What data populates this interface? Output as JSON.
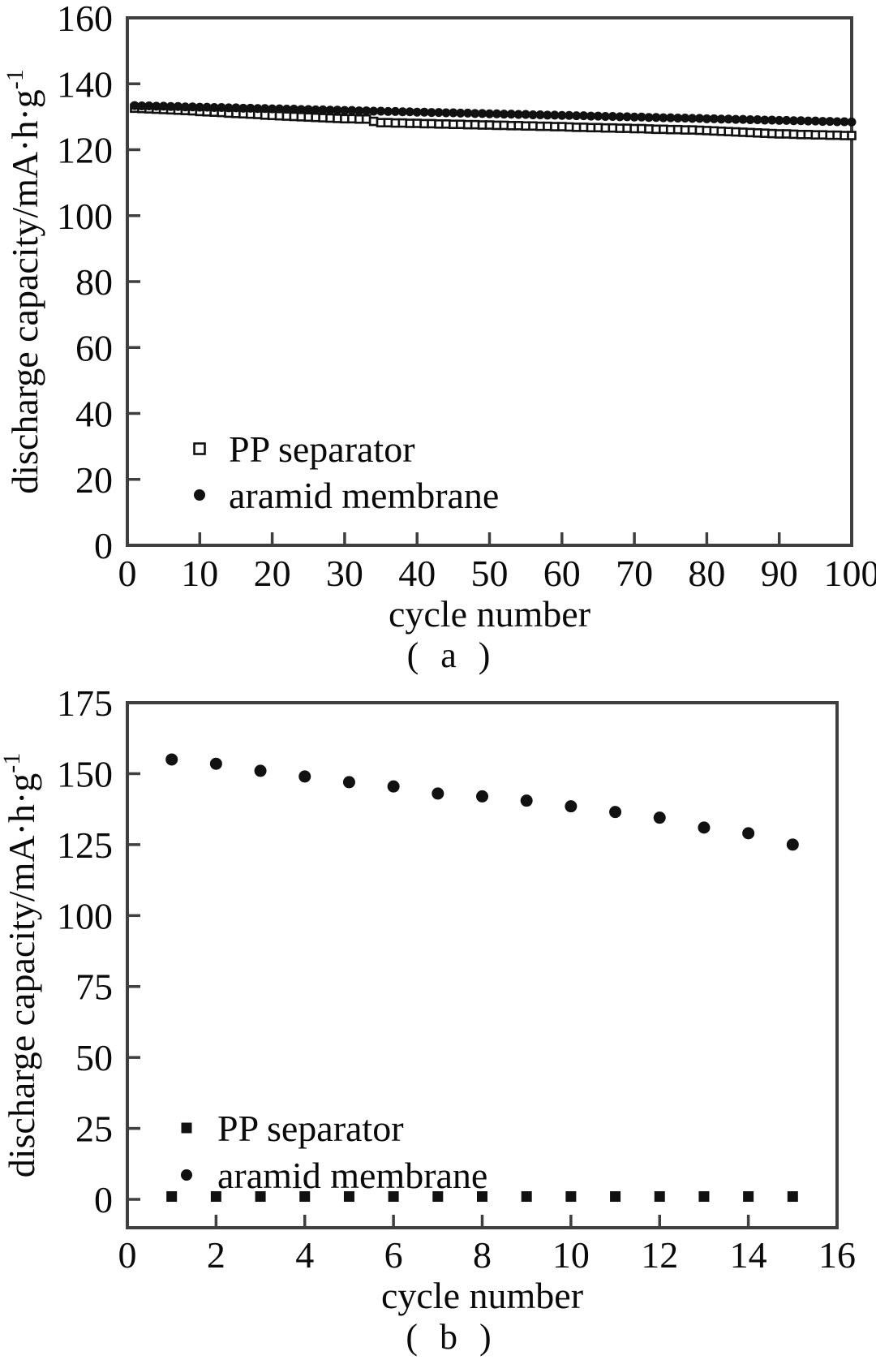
{
  "figure": {
    "background": "#ffffff",
    "text_color": "#0a0a0a",
    "axis_color": "#3f3f3f",
    "marker_color": "#111111"
  },
  "chart_data": [
    {
      "id": "a",
      "type": "scatter",
      "caption": "( a )",
      "xlabel": "cycle number",
      "ylabel_main": "discharge capacity/mA·h·g",
      "ylabel_exponent": "-1",
      "xlim": [
        0,
        100
      ],
      "ylim": [
        0,
        160
      ],
      "xticks": [
        0,
        10,
        20,
        30,
        40,
        50,
        60,
        70,
        80,
        90,
        100
      ],
      "yticks": [
        0,
        20,
        40,
        60,
        80,
        100,
        120,
        140,
        160
      ],
      "grid": false,
      "legend_position": "lower-left-inside",
      "x_start": 1,
      "x_step": 1,
      "series": [
        {
          "name": "PP separator",
          "marker": "open-square",
          "color": "#111111",
          "values": [
            132.6,
            132.5,
            132.4,
            132.3,
            132.2,
            132.1,
            132.0,
            131.9,
            131.8,
            131.6,
            131.5,
            131.4,
            131.3,
            131.1,
            131.0,
            130.9,
            130.8,
            130.7,
            130.5,
            130.4,
            130.3,
            130.2,
            130.1,
            130.0,
            129.9,
            129.8,
            129.7,
            129.6,
            129.5,
            129.4,
            129.4,
            129.3,
            129.3,
            128.6,
            128.2,
            128.2,
            128.1,
            128.1,
            128.0,
            128.0,
            127.9,
            127.9,
            127.8,
            127.8,
            127.7,
            127.7,
            127.6,
            127.6,
            127.5,
            127.5,
            127.4,
            127.4,
            127.3,
            127.3,
            127.2,
            127.2,
            127.1,
            127.1,
            127.0,
            127.0,
            126.9,
            126.8,
            126.8,
            126.7,
            126.7,
            126.6,
            126.6,
            126.5,
            126.5,
            126.4,
            126.4,
            126.3,
            126.2,
            126.2,
            126.1,
            126.1,
            126.0,
            126.0,
            125.9,
            125.8,
            125.7,
            125.6,
            125.5,
            125.4,
            125.3,
            125.2,
            125.1,
            125.0,
            124.9,
            124.8,
            124.8,
            124.7,
            124.6,
            124.6,
            124.5,
            124.5,
            124.4,
            124.4,
            124.3,
            124.3
          ]
        },
        {
          "name": "aramid membrane",
          "marker": "filled-circle",
          "color": "#111111",
          "values": [
            133.4,
            133.3,
            133.3,
            133.2,
            133.2,
            133.1,
            133.1,
            133.0,
            133.0,
            132.9,
            132.9,
            132.8,
            132.8,
            132.7,
            132.7,
            132.6,
            132.6,
            132.5,
            132.5,
            132.4,
            132.4,
            132.3,
            132.3,
            132.2,
            132.2,
            132.1,
            132.1,
            132.0,
            132.0,
            131.9,
            131.9,
            131.8,
            131.8,
            131.7,
            131.7,
            131.6,
            131.6,
            131.5,
            131.5,
            131.4,
            131.4,
            131.3,
            131.3,
            131.2,
            131.2,
            131.1,
            131.1,
            131.0,
            131.0,
            130.9,
            130.9,
            130.8,
            130.8,
            130.7,
            130.7,
            130.6,
            130.6,
            130.5,
            130.5,
            130.4,
            130.4,
            130.3,
            130.3,
            130.2,
            130.2,
            130.1,
            130.1,
            130.0,
            130.0,
            129.9,
            129.9,
            129.8,
            129.8,
            129.7,
            129.7,
            129.6,
            129.6,
            129.5,
            129.5,
            129.4,
            129.4,
            129.3,
            129.3,
            129.2,
            129.2,
            129.1,
            129.1,
            129.0,
            129.0,
            128.9,
            128.9,
            128.8,
            128.8,
            128.7,
            128.7,
            128.6,
            128.6,
            128.5,
            128.5,
            128.4
          ]
        }
      ]
    },
    {
      "id": "b",
      "type": "scatter",
      "caption": "( b )",
      "xlabel": "cycle number",
      "ylabel_main": "discharge capacity/mA·h·g",
      "ylabel_exponent": "-1",
      "xlim": [
        0,
        16
      ],
      "ylim": [
        -10,
        175
      ],
      "xticks": [
        0,
        2,
        4,
        6,
        8,
        10,
        12,
        14,
        16
      ],
      "yticks": [
        0,
        25,
        50,
        75,
        100,
        125,
        150,
        175
      ],
      "grid": false,
      "legend_position": "lower-left-inside",
      "x_start": 1,
      "x_step": 1,
      "series": [
        {
          "name": "PP separator",
          "marker": "filled-square",
          "color": "#111111",
          "values": [
            1,
            1,
            1,
            1,
            1,
            1,
            1,
            1,
            1,
            1,
            1,
            1,
            1,
            1,
            1
          ]
        },
        {
          "name": "aramid membrane",
          "marker": "filled-circle",
          "color": "#111111",
          "values": [
            155,
            153.5,
            151,
            149,
            147,
            145.5,
            143,
            142,
            140.5,
            138.5,
            136.5,
            134.5,
            131,
            129,
            125
          ]
        }
      ]
    }
  ]
}
